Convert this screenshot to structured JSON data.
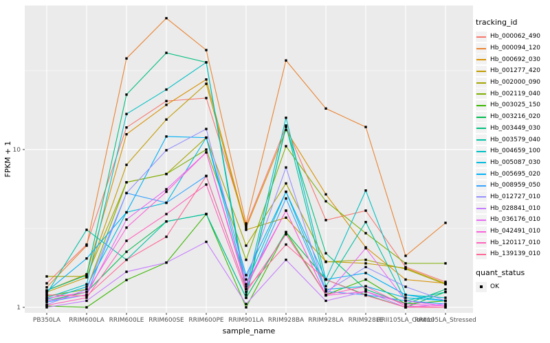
{
  "figure": {
    "background": "#FFFFFF",
    "panel_background": "#EBEBEB",
    "gridline_color": "#FFFFFF",
    "tick_text_color": "#4D4D4D",
    "marker_color": "#000000"
  },
  "chart_data": {
    "type": "line",
    "title": "",
    "xlabel": "sample_name",
    "ylabel": "FPKM + 1",
    "y_scale": "log10",
    "ylim": [
      0.93,
      80
    ],
    "grid": "on",
    "legend_position": "right",
    "y_ticks": [
      {
        "label": "1",
        "value": 1
      },
      {
        "label": "10",
        "value": 10
      }
    ],
    "categories": [
      "PB350LA",
      "RRIM600LA",
      "RRIM600LE",
      "RRIM600SE",
      "RRIM600PE",
      "RRIM901LA",
      "RRIM928BA",
      "RRIM928LA",
      "RRIM928LE",
      "RRII105LA_Control",
      "RRII105LA_Stressed"
    ],
    "legend": {
      "title": "tracking_id"
    },
    "quant_legend": {
      "title": "quant_status",
      "items": [
        {
          "label": "OK",
          "marker": "black-square"
        }
      ]
    },
    "series": [
      {
        "name": "Hb_000062_490",
        "color": "#F8766D",
        "values": [
          1.42,
          2.5,
          13.8,
          20.3,
          21.2,
          3.3,
          14.0,
          3.57,
          4.1,
          1.8,
          1.45
        ]
      },
      {
        "name": "Hb_000094_120",
        "color": "#EA8331",
        "values": [
          1.34,
          2.46,
          37.8,
          68.0,
          42.7,
          3.4,
          36.7,
          18.2,
          13.9,
          2.12,
          3.43
        ]
      },
      {
        "name": "Hb_000692_030",
        "color": "#D89000",
        "values": [
          1.28,
          1.62,
          12.5,
          19.2,
          27.8,
          3.2,
          13.3,
          5.2,
          2.4,
          1.5,
          1.42
        ]
      },
      {
        "name": "Hb_001277_420",
        "color": "#C09B00",
        "values": [
          1.25,
          1.55,
          8.0,
          15.5,
          26.1,
          3.1,
          3.7,
          1.95,
          1.9,
          1.77,
          1.42
        ]
      },
      {
        "name": "Hb_002000_090",
        "color": "#A3A500",
        "values": [
          1.57,
          1.57,
          6.2,
          7.0,
          11.9,
          2.46,
          6.1,
          1.94,
          2.0,
          1.75,
          1.4
        ]
      },
      {
        "name": "Hb_002119_040",
        "color": "#7CAE00",
        "values": [
          1.18,
          1.3,
          6.2,
          7.0,
          10.0,
          2.0,
          10.5,
          4.7,
          2.95,
          1.9,
          1.9
        ]
      },
      {
        "name": "Hb_003025_150",
        "color": "#39B600",
        "values": [
          1.02,
          1.0,
          1.49,
          1.92,
          3.9,
          1.0,
          3.0,
          1.2,
          1.5,
          1.05,
          1.1
        ]
      },
      {
        "name": "Hb_003216_020",
        "color": "#00BB4E",
        "values": [
          1.1,
          1.25,
          2.25,
          3.5,
          3.9,
          1.15,
          3.0,
          1.5,
          1.2,
          1.0,
          1.25
        ]
      },
      {
        "name": "Hb_003449_030",
        "color": "#00BF7D",
        "values": [
          1.28,
          1.6,
          22.3,
          41.0,
          35.7,
          1.2,
          13.9,
          2.2,
          1.3,
          1.05,
          1.3
        ]
      },
      {
        "name": "Hb_003579_040",
        "color": "#00C1A3",
        "values": [
          1.22,
          3.1,
          2.0,
          3.5,
          3.9,
          1.15,
          14.2,
          1.36,
          3.47,
          1.1,
          1.25
        ]
      },
      {
        "name": "Hb_004659_100",
        "color": "#00BFC4",
        "values": [
          1.15,
          1.4,
          16.8,
          24.0,
          35.7,
          1.3,
          15.9,
          1.5,
          5.5,
          1.2,
          1.15
        ]
      },
      {
        "name": "Hb_005087_030",
        "color": "#00BADE",
        "values": [
          1.12,
          1.35,
          4.0,
          4.6,
          11.9,
          1.4,
          5.4,
          1.3,
          1.36,
          1.15,
          1.1
        ]
      },
      {
        "name": "Hb_005695_020",
        "color": "#00B0F6",
        "values": [
          1.26,
          2.04,
          4.0,
          12.1,
          11.9,
          1.6,
          5.4,
          1.5,
          1.65,
          1.2,
          1.1
        ]
      },
      {
        "name": "Hb_008959_050",
        "color": "#35A2FF",
        "values": [
          1.08,
          1.2,
          5.3,
          4.6,
          6.8,
          1.3,
          4.9,
          1.26,
          1.2,
          1.1,
          1.05
        ]
      },
      {
        "name": "Hb_012727_010",
        "color": "#9590FF",
        "values": [
          1.04,
          1.3,
          5.3,
          9.9,
          13.5,
          1.5,
          7.7,
          1.26,
          1.8,
          1.35,
          1.1
        ]
      },
      {
        "name": "Hb_028841_010",
        "color": "#C77CFF",
        "values": [
          1.0,
          1.1,
          1.68,
          1.92,
          2.6,
          1.05,
          2.0,
          1.1,
          1.26,
          1.0,
          1.05
        ]
      },
      {
        "name": "Hb_036176_010",
        "color": "#E76BF3",
        "values": [
          1.1,
          1.2,
          3.6,
          5.6,
          9.6,
          1.4,
          4.1,
          1.19,
          2.37,
          1.1,
          1.02
        ]
      },
      {
        "name": "Hb_042491_010",
        "color": "#FA62DB",
        "values": [
          1.14,
          1.25,
          3.2,
          5.4,
          9.6,
          1.35,
          4.1,
          1.19,
          1.26,
          1.05,
          1.02
        ]
      },
      {
        "name": "Hb_120117_010",
        "color": "#FF62BC",
        "values": [
          1.03,
          1.15,
          2.64,
          3.9,
          6.0,
          1.25,
          2.9,
          1.2,
          1.36,
          1.02,
          1.0
        ]
      },
      {
        "name": "Hb_139139_010",
        "color": "#FF6A98",
        "values": [
          1.2,
          1.18,
          2.0,
          2.8,
          6.8,
          1.3,
          2.5,
          1.5,
          1.19,
          1.0,
          1.0
        ]
      }
    ]
  }
}
